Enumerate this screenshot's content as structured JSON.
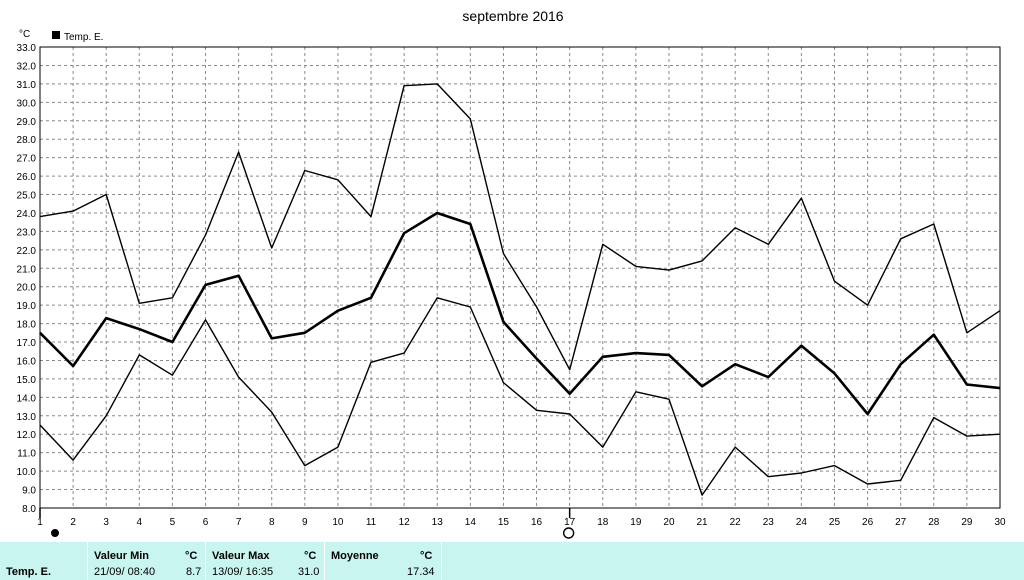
{
  "chart_data": {
    "type": "line",
    "title": "septembre 2016",
    "ylabel": "°C",
    "ylim": [
      8.0,
      33.0
    ],
    "ystep": 1.0,
    "x": [
      1,
      2,
      3,
      4,
      5,
      6,
      7,
      8,
      9,
      10,
      11,
      12,
      13,
      14,
      15,
      16,
      17,
      18,
      19,
      20,
      21,
      22,
      23,
      24,
      25,
      26,
      27,
      28,
      29,
      30
    ],
    "grid": true,
    "legend": "top-left",
    "legend_entries": [
      "Temp. E."
    ],
    "series": [
      {
        "role": "max",
        "values": [
          23.8,
          24.1,
          25.0,
          19.1,
          19.4,
          22.8,
          27.3,
          22.1,
          26.3,
          25.8,
          23.8,
          30.9,
          31.0,
          29.1,
          21.8,
          18.9,
          15.5,
          22.3,
          21.1,
          20.9,
          21.4,
          23.2,
          22.3,
          24.8,
          20.3,
          19.0,
          22.6,
          23.4,
          17.5,
          18.7
        ]
      },
      {
        "name": "Temp. E.",
        "role": "mean",
        "values": [
          17.5,
          15.7,
          18.3,
          17.7,
          17.0,
          20.1,
          20.6,
          17.2,
          17.5,
          18.7,
          19.4,
          22.9,
          24.0,
          23.4,
          18.1,
          16.1,
          14.2,
          16.2,
          16.4,
          16.3,
          14.6,
          15.8,
          15.1,
          16.8,
          15.3,
          13.1,
          15.8,
          17.4,
          14.7,
          14.5
        ]
      },
      {
        "role": "min",
        "values": [
          12.5,
          10.6,
          13.0,
          16.3,
          15.2,
          18.2,
          15.1,
          13.2,
          10.3,
          11.3,
          15.9,
          16.4,
          19.4,
          18.9,
          14.8,
          13.3,
          13.1,
          11.3,
          14.3,
          13.9,
          8.7,
          11.3,
          9.7,
          9.9,
          10.3,
          9.3,
          9.5,
          12.9,
          11.9,
          12.0
        ]
      }
    ],
    "markers": [
      {
        "day": 1,
        "icon": "new-moon-icon"
      },
      {
        "day": 17,
        "icon": "full-moon-icon"
      }
    ]
  },
  "stats": {
    "row_label": "Temp. E.",
    "min": {
      "header": "Valeur Min",
      "unit": "°C",
      "datetime": "21/09/  08:40",
      "value": "8.7"
    },
    "max": {
      "header": "Valeur Max",
      "unit": "°C",
      "datetime": "13/09/  16:35",
      "value": "31.0"
    },
    "mean": {
      "header": "Moyenne",
      "unit": "°C",
      "value": "17.34"
    }
  }
}
